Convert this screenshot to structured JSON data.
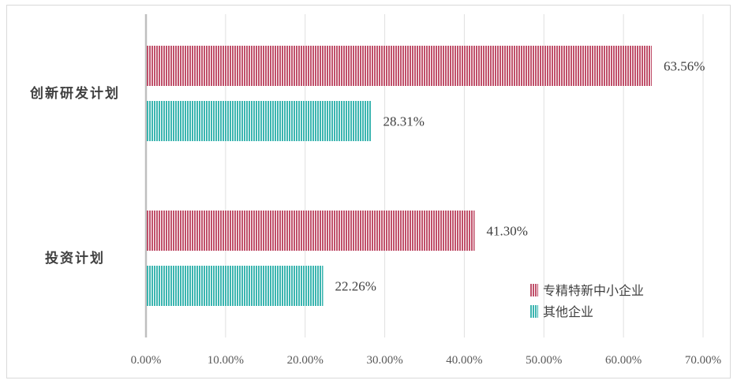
{
  "chart_data": {
    "type": "bar",
    "orientation": "horizontal",
    "categories": [
      "创新研发计划",
      "投资计划"
    ],
    "series": [
      {
        "name": "专精特新中小企业",
        "values": [
          63.56,
          41.3
        ],
        "color": "#c0506a"
      },
      {
        "name": "其他企业",
        "values": [
          28.31,
          22.26
        ],
        "color": "#3bb5b0"
      }
    ],
    "data_labels": [
      [
        "63.56%",
        "41.30%"
      ],
      [
        "28.31%",
        "22.26%"
      ]
    ],
    "xlim": [
      0,
      70
    ],
    "x_ticks": [
      0,
      10,
      20,
      30,
      40,
      50,
      60,
      70
    ],
    "x_tick_labels": [
      "0.00%",
      "10.00%",
      "20.00%",
      "30.00%",
      "40.00%",
      "50.00%",
      "60.00%",
      "70.00%"
    ],
    "grid": "vertical",
    "legend_position": "bottom-right",
    "title": "",
    "xlabel": "",
    "ylabel": ""
  }
}
